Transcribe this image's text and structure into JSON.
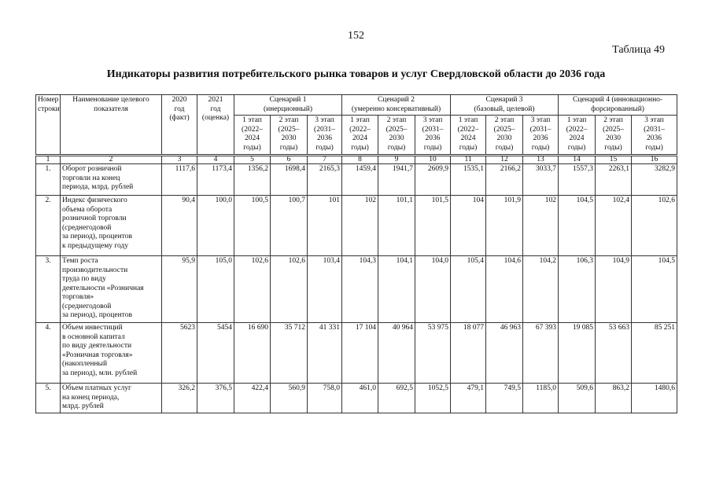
{
  "page_number": "152",
  "table_label": "Таблица 49",
  "title": "Индикаторы развития потребительского рынка товаров и услуг Свердловской области до 2036 года",
  "table": {
    "header_top": [
      "Номер\nстроки",
      "Наименование целевого\nпоказателя",
      "2020\nгод\n(факт)",
      "2021\nгод\n(оценка)",
      "Сценарий 1\n(инерционный)",
      "Сценарий 2\n(умеренно консервативный)",
      "Сценарий 3\n(базовый, целевой)",
      "Сценарий 4 (инновационно-\nфорсированный)"
    ],
    "stages": [
      "1 этап\n(2022–\n2024\nгоды)",
      "2 этап\n(2025–\n2030\nгоды)",
      "3 этап\n(2031–\n2036\nгоды)",
      "1 этап\n(2022–\n2024\nгоды)",
      "2 этап\n(2025–\n2030\nгоды)",
      "3 этап\n(2031–\n2036\nгоды)",
      "1 этап\n(2022–\n2024\nгоды)",
      "2 этап\n(2025–\n2030\nгоды)",
      "3 этап\n(2031–\n2036\nгоды)",
      "1 этап\n(2022–\n2024\nгоды)",
      "2 этап\n(2025–\n2030\nгоды)",
      "3 этап\n(2031–\n2036\nгоды)"
    ],
    "column_numbers": [
      "1",
      "2",
      "3",
      "4",
      "5",
      "6",
      "7",
      "8",
      "9",
      "10",
      "11",
      "12",
      "13",
      "14",
      "15",
      "16"
    ],
    "rows": [
      [
        "1.",
        "Оборот розничной\nторговли на конец\nпериода, млрд. рублей",
        "1117,6",
        "1173,4",
        "1356,2",
        "1698,4",
        "2165,3",
        "1459,4",
        "1941,7",
        "2609,9",
        "1535,1",
        "2166,2",
        "3033,7",
        "1557,3",
        "2263,1",
        "3282,9"
      ],
      [
        "2.",
        "Индекс физического\nобъема оборота\nрозничной торговли\n(среднегодовой\nза период), процентов\nк предыдущему году",
        "90,4",
        "100,0",
        "100,5",
        "100,7",
        "101",
        "102",
        "101,1",
        "101,5",
        "104",
        "101,9",
        "102",
        "104,5",
        "102,4",
        "102,6"
      ],
      [
        "3.",
        "Темп роста\nпроизводительности\nтруда по виду\nдеятельности «Розничная\nторговля»\n(среднегодовой\nза период), процентов",
        "95,9",
        "105,0",
        "102,6",
        "102,6",
        "103,4",
        "104,3",
        "104,1",
        "104,0",
        "105,4",
        "104,6",
        "104,2",
        "106,3",
        "104,9",
        "104,5"
      ],
      [
        "4.",
        "Объем инвестиций\nв основной капитал\nпо виду деятельности\n«Розничная торговля»\n(накопленный\nза период), млн. рублей",
        "5623",
        "5454",
        "16 690",
        "35 712",
        "41 331",
        "17 104",
        "40 964",
        "53 975",
        "18 077",
        "46 963",
        "67 393",
        "19 085",
        "53 663",
        "85 251"
      ],
      [
        "5.",
        "Объем платных услуг\nна конец периода,\nмлрд. рублей",
        "326,2",
        "376,5",
        "422,4",
        "560,9",
        "758,0",
        "461,0",
        "692,5",
        "1052,5",
        "479,1",
        "749,5",
        "1185,0",
        "509,6",
        "863,2",
        "1480,6"
      ]
    ]
  }
}
